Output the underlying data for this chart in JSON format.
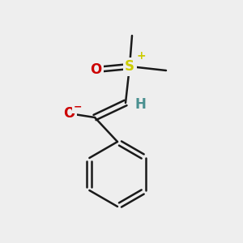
{
  "bg_color": "#eeeeee",
  "atom_colors": {
    "C": "#000000",
    "H": "#4a9090",
    "O": "#cc0000",
    "S": "#cccc00",
    "charge_plus": "#cccc00",
    "charge_minus": "#cc0000"
  },
  "bond_color": "#1a1a1a",
  "bond_width": 1.8
}
